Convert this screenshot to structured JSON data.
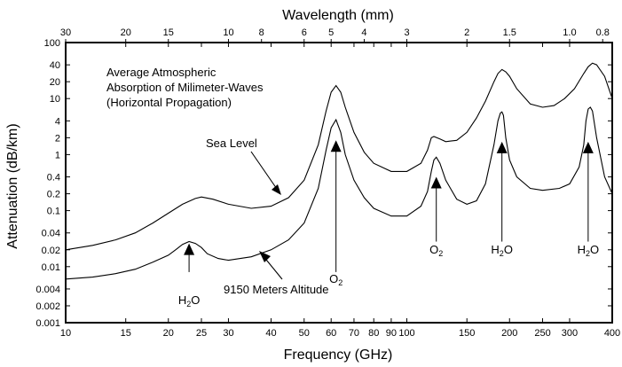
{
  "chart_data": {
    "type": "line",
    "title": "Average Atmospheric Absorption of Milimeter-Waves (Horizontal Propagation)",
    "title_lines": [
      "Average Atmospheric",
      "Absorption of Milimeter-Waves",
      "(Horizontal Propagation)"
    ],
    "xlabel": "Frequency (GHz)",
    "ylabel": "Attenuation (dB/km)",
    "top_axis_label": "Wavelength (mm)",
    "x_scale": "log",
    "y_scale": "log",
    "xlim": [
      10,
      400
    ],
    "ylim": [
      0.001,
      100
    ],
    "grid": false,
    "x_ticks": [
      10,
      15,
      20,
      25,
      30,
      40,
      50,
      60,
      70,
      80,
      90,
      100,
      150,
      200,
      250,
      300,
      400
    ],
    "x_tick_labels": [
      "10",
      "15",
      "20",
      "25",
      "30",
      "40",
      "50",
      "60",
      "70",
      "80",
      "90",
      "100",
      "150",
      "200",
      "250",
      "300",
      "400"
    ],
    "y_ticks": [
      0.001,
      0.002,
      0.004,
      0.01,
      0.02,
      0.04,
      0.1,
      0.2,
      0.4,
      1,
      2,
      4,
      10,
      20,
      40,
      100
    ],
    "y_tick_labels": [
      "0.001",
      "0.002",
      "0.004",
      "0.01",
      "0.02",
      "0.04",
      "0.1",
      "0.2",
      "0.4",
      "1",
      "2",
      "4",
      "10",
      "20",
      "40",
      "100"
    ],
    "top_ticks": [
      30,
      20,
      15,
      10,
      8,
      6,
      5,
      4,
      3,
      2,
      1.5,
      1.0,
      0.8
    ],
    "top_tick_labels": [
      "30",
      "20",
      "15",
      "10",
      "8",
      "6",
      "5",
      "4",
      "3",
      "2",
      "1.5",
      "1.0",
      "0.8"
    ],
    "series": [
      {
        "label": "Sea Level",
        "x": [
          10,
          12,
          14,
          16,
          18,
          20,
          22,
          24,
          25,
          27,
          30,
          35,
          40,
          45,
          50,
          55,
          58,
          60,
          62,
          64,
          66,
          70,
          75,
          80,
          90,
          100,
          110,
          115,
          118,
          120,
          125,
          130,
          140,
          150,
          160,
          170,
          180,
          185,
          190,
          195,
          200,
          210,
          230,
          250,
          270,
          290,
          310,
          330,
          340,
          350,
          360,
          380,
          400
        ],
        "y": [
          0.02,
          0.024,
          0.03,
          0.04,
          0.06,
          0.09,
          0.13,
          0.165,
          0.175,
          0.16,
          0.13,
          0.11,
          0.12,
          0.17,
          0.35,
          1.5,
          6,
          13,
          17,
          13,
          7,
          2.5,
          1.1,
          0.7,
          0.5,
          0.5,
          0.7,
          1.2,
          2.0,
          2.1,
          1.9,
          1.7,
          1.8,
          2.5,
          4.5,
          9,
          20,
          28,
          33,
          30,
          25,
          15,
          8,
          7,
          7.5,
          10,
          15,
          28,
          37,
          43,
          40,
          25,
          10
        ]
      },
      {
        "label": "9150 Meters Altitude",
        "x": [
          10,
          12,
          14,
          16,
          18,
          20,
          21,
          22,
          23,
          24,
          25,
          26,
          28,
          30,
          35,
          40,
          45,
          50,
          55,
          58,
          60,
          62,
          64,
          66,
          70,
          75,
          80,
          90,
          100,
          110,
          115,
          118,
          120,
          122,
          125,
          130,
          140,
          150,
          160,
          170,
          180,
          185,
          188,
          190,
          192,
          195,
          200,
          210,
          230,
          250,
          280,
          300,
          320,
          330,
          335,
          340,
          345,
          350,
          360,
          380,
          400
        ],
        "y": [
          0.006,
          0.0065,
          0.0075,
          0.009,
          0.012,
          0.016,
          0.02,
          0.025,
          0.028,
          0.026,
          0.022,
          0.017,
          0.014,
          0.013,
          0.015,
          0.02,
          0.03,
          0.06,
          0.25,
          1.2,
          3,
          4.2,
          2.5,
          1.0,
          0.35,
          0.17,
          0.11,
          0.08,
          0.08,
          0.12,
          0.22,
          0.5,
          0.8,
          0.9,
          0.7,
          0.35,
          0.16,
          0.13,
          0.15,
          0.3,
          1.5,
          4,
          5.5,
          5.8,
          5,
          2,
          0.8,
          0.4,
          0.25,
          0.23,
          0.25,
          0.3,
          0.6,
          1.5,
          4,
          6.5,
          7,
          6,
          2,
          0.4,
          0.2
        ]
      }
    ],
    "curve_labels": {
      "sea_level": "Sea Level",
      "altitude": "9150 Meters Altitude"
    },
    "absorption_labels": [
      {
        "text": "H2O",
        "main": "H",
        "sub": "2",
        "rest": "O",
        "freq": 23,
        "arrow_tip": 0.026,
        "arrow_tail": 0.008,
        "label_y": 0.0025
      },
      {
        "text": "O2",
        "main": "O",
        "sub": "2",
        "rest": "",
        "freq": 62,
        "arrow_tip": 1.8,
        "arrow_tail": 0.008,
        "label_y": 0.006
      },
      {
        "text": "O2",
        "main": "O",
        "sub": "2",
        "rest": "",
        "freq": 122,
        "arrow_tip": 0.4,
        "arrow_tail": 0.028,
        "label_y": 0.02
      },
      {
        "text": "H2O",
        "main": "H",
        "sub": "2",
        "rest": "O",
        "freq": 190,
        "arrow_tip": 1.7,
        "arrow_tail": 0.028,
        "label_y": 0.02
      },
      {
        "text": "H2O",
        "main": "H",
        "sub": "2",
        "rest": "O",
        "freq": 340,
        "arrow_tip": 1.7,
        "arrow_tail": 0.028,
        "label_y": 0.02
      }
    ]
  }
}
